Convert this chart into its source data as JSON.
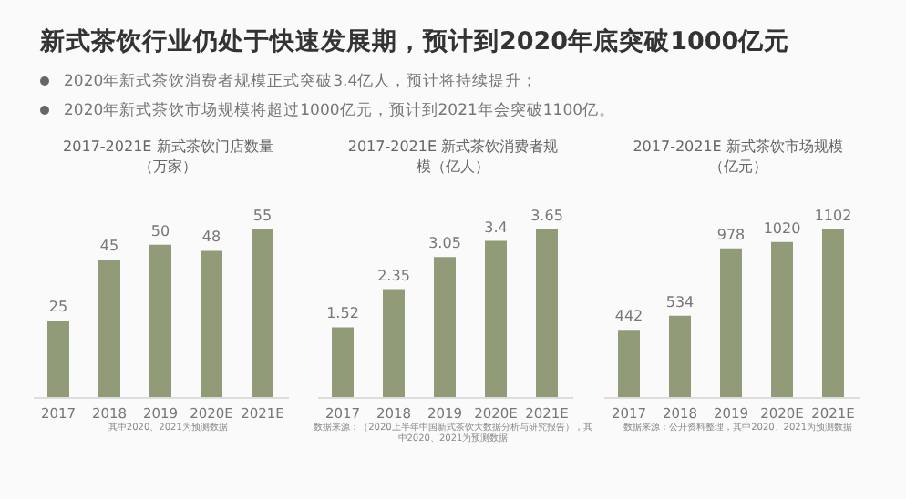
{
  "chart_data": [
    {
      "type": "other",
      "title": "新式茶饮行业仍处于快速发展期，预计到2020年底突破1000亿元",
      "annotations": [
        "2020年新式茶饮消费者规模正式突破3.4亿人，预计将持续提升；",
        "2020年新式茶饮市场规模将超过1000亿元，预计到2021年会突破1100亿。"
      ]
    },
    {
      "type": "bar",
      "title": "2017-2021E 新式茶饮门店数量（万家）",
      "categories": [
        "2017",
        "2018",
        "2019",
        "2020E",
        "2021E"
      ],
      "values": [
        25,
        45,
        50,
        48,
        55
      ],
      "color": "#919b78",
      "data_labels": true,
      "tick_labels": "x",
      "annotations": [
        "其中2020、2021为预测数据"
      ]
    },
    {
      "type": "bar",
      "title": "2017-2021E 新式茶饮消费者规模（亿人）",
      "categories": [
        "2017",
        "2018",
        "2019",
        "2020E",
        "2021E"
      ],
      "values": [
        1.52,
        2.35,
        3.05,
        3.4,
        3.65
      ],
      "color": "#919b78",
      "data_labels": true,
      "tick_labels": "x",
      "annotations": [
        "数据来源：（2020上半年中国新式茶饮大数据分析与研究报告），其中2020、2021为预测数据"
      ]
    },
    {
      "type": "bar",
      "title": "2017-2021E 新式茶饮市场规模（亿元）",
      "categories": [
        "2017",
        "2018",
        "2019",
        "2020E",
        "2021E"
      ],
      "values": [
        442,
        534,
        978,
        1020,
        1102
      ],
      "color": "#919b78",
      "data_labels": true,
      "tick_labels": "x",
      "annotations": [
        "数据来源：公开资料整理，其中2020、2021为预测数据"
      ]
    }
  ]
}
